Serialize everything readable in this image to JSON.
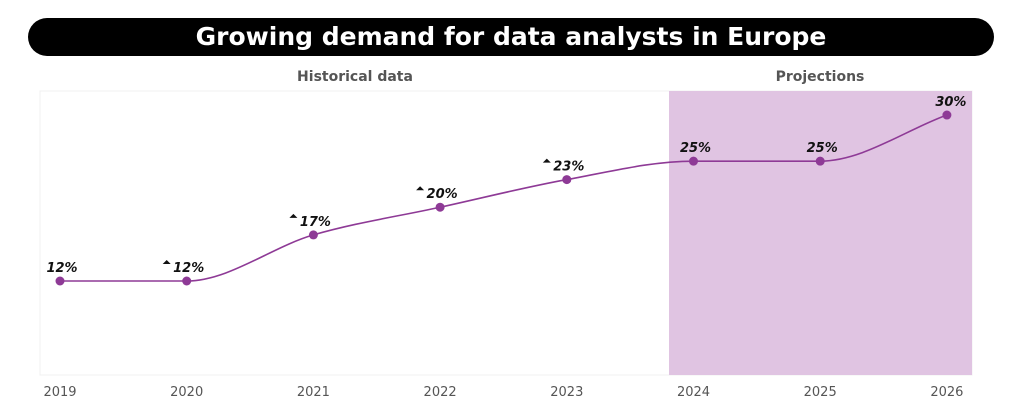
{
  "title": "Growing demand for data analysts in Europe",
  "chart_data": {
    "type": "line",
    "title": "Growing demand for data analysts in Europe",
    "categories": [
      "2019",
      "2020",
      "2021",
      "2022",
      "2023",
      "2024",
      "2025",
      "2026"
    ],
    "values": [
      12,
      12,
      17,
      20,
      23,
      25,
      25,
      30
    ],
    "data_labels": [
      "12%",
      "12%",
      "17%",
      "20%",
      "23%",
      "25%",
      "25%",
      "30%"
    ],
    "up_arrow_markers": [
      false,
      true,
      true,
      true,
      true,
      false,
      false,
      false
    ],
    "sections": [
      {
        "label": "Historical data",
        "range": [
          "2019",
          "2023"
        ]
      },
      {
        "label": "Projections",
        "range": [
          "2024",
          "2026"
        ],
        "shaded": true
      }
    ],
    "ylim": [
      5,
      32
    ],
    "grid": false,
    "colors": {
      "line": "#8e3a96",
      "projection_shade": "#e0c4e2"
    }
  }
}
